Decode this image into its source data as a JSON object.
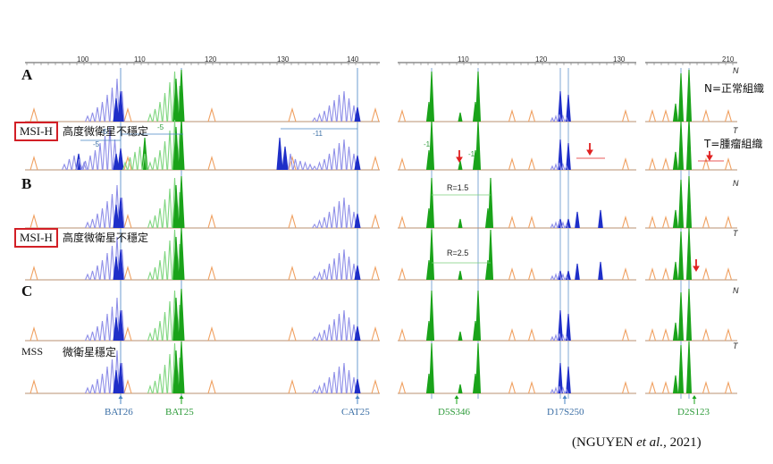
{
  "figure": {
    "panels": [
      {
        "letter": "A",
        "normal_label": "N",
        "tumor_label": "T",
        "status": "MSI-H",
        "status_boxed": true,
        "status_text": "高度微衛星不穩定"
      },
      {
        "letter": "B",
        "normal_label": "N",
        "tumor_label": "T",
        "status": "MSI-H",
        "status_boxed": true,
        "status_text": "高度微衛星不穩定"
      },
      {
        "letter": "C",
        "normal_label": "N",
        "tumor_label": "T",
        "status": "MSS",
        "status_boxed": false,
        "status_text": "微衛星穩定"
      }
    ],
    "legend_normal": "N=正常組織",
    "legend_tumor": "T=腫瘤組織",
    "markers": [
      {
        "name": "BAT26",
        "color": "#3a6ea5"
      },
      {
        "name": "BAT25",
        "color": "#2e9b3a"
      },
      {
        "name": "CAT25",
        "color": "#3a6ea5"
      },
      {
        "name": "D5S346",
        "color": "#2e9b3a"
      },
      {
        "name": "D17S250",
        "color": "#3a6ea5"
      },
      {
        "name": "D2S123",
        "color": "#2e9b3a"
      }
    ],
    "shift_labels": {
      "bat26": "-5",
      "bat26_2": "-5",
      "bat25": "-5",
      "cat25": "-11",
      "d5_left": "-1",
      "d5_right": "-1",
      "r1": "R=1.5",
      "r2": "R=2.5"
    },
    "scale_ticks_left": [
      "100",
      "110",
      "120",
      "130",
      "140"
    ],
    "scale_ticks_right": [
      "110",
      "120",
      "130",
      "210"
    ],
    "citation": "(NGUYEN et al., 2021)",
    "citation_parts": {
      "before": "(NGUYEN ",
      "italic": "et al.",
      "after": ", 2021)"
    }
  },
  "colors": {
    "blue": "#1f2fc8",
    "green": "#1aa31a",
    "orange": "#f0a060",
    "lightblue": "#8f8fe8",
    "lightgreen": "#7fd67f",
    "red": "#e02020",
    "guide": "#4a86c5",
    "baseline": "#b89070"
  },
  "chart_data": {
    "type": "electropherogram",
    "title": "",
    "panels": [
      "A",
      "B",
      "C"
    ],
    "traces": [
      "N",
      "T"
    ],
    "loci": [
      "BAT26",
      "BAT25",
      "CAT25",
      "D5S346",
      "D17S250",
      "D2S123"
    ],
    "shifts_A": {
      "BAT26": -5,
      "BAT25": -5,
      "CAT25": -11,
      "D5S346": -1
    },
    "ratios_B": {
      "normal": 1.5,
      "tumor": 2.5
    }
  }
}
